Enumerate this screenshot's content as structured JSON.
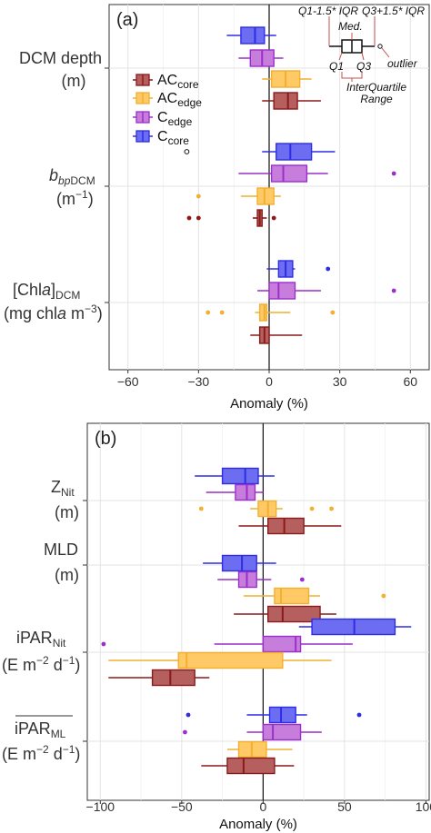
{
  "colors": {
    "AC_core": {
      "fill": "#b5605e",
      "line": "#8b1a1a"
    },
    "AC_edge": {
      "fill": "#ffc966",
      "line": "#f0b030"
    },
    "C_edge": {
      "fill": "#c77ddc",
      "line": "#9a2fc9"
    },
    "C_core": {
      "fill": "#6d6df2",
      "line": "#2d2de6"
    }
  },
  "legend": [
    {
      "key": "AC_core",
      "base": "AC",
      "sub": "core"
    },
    {
      "key": "AC_edge",
      "base": "AC",
      "sub": "edge"
    },
    {
      "key": "C_edge",
      "base": "C",
      "sub": "edge"
    },
    {
      "key": "C_core",
      "base": "C",
      "sub": "core"
    }
  ],
  "key_annotation": {
    "whisker_low": "Q1-1.5* IQR",
    "whisker_high": "Q3+1.5* IQR",
    "median": "Med.",
    "q1": "Q1",
    "q3": "Q3",
    "outlier": "outlier",
    "iqr": [
      "InterQuartile",
      "Range"
    ]
  },
  "chart_data": [
    {
      "type": "boxplot",
      "panel_label": "(a)",
      "xlabel": "Anomaly (%)",
      "xlim": [
        -68,
        68
      ],
      "xticks": [
        -60,
        -30,
        0,
        30,
        60
      ],
      "grid": true,
      "categories": [
        {
          "label_lines": [
            "DCM depth",
            "(m)"
          ],
          "boxes": [
            {
              "key": "C_core",
              "q1": -12,
              "median": -6,
              "q3": -2,
              "whisker_low": -18,
              "whisker_high": 3,
              "outliers": []
            },
            {
              "key": "C_edge",
              "q1": -8,
              "median": -3,
              "q3": 2,
              "whisker_low": -13,
              "whisker_high": 6,
              "outliers": []
            },
            {
              "key": "AC_edge",
              "q1": 1,
              "median": 7,
              "q3": 13,
              "whisker_low": -3,
              "whisker_high": 18,
              "outliers": []
            },
            {
              "key": "AC_core",
              "q1": 2,
              "median": 8,
              "q3": 12,
              "whisker_low": -3,
              "whisker_high": 22,
              "outliers": []
            }
          ]
        },
        {
          "label_lines": [
            "bbpDCM",
            "(m-1)"
          ],
          "boxes": [
            {
              "key": "C_core",
              "q1": 3,
              "median": 9,
              "q3": 18,
              "whisker_low": -3,
              "whisker_high": 28,
              "outliers": [
                -35
              ]
            },
            {
              "key": "C_edge",
              "q1": 1,
              "median": 6,
              "q3": 16,
              "whisker_low": -13,
              "whisker_high": 25,
              "outliers": [
                53
              ]
            },
            {
              "key": "AC_edge",
              "q1": -5,
              "median": -2,
              "q3": 2,
              "whisker_low": -12,
              "whisker_high": 5,
              "outliers": [
                -30
              ]
            },
            {
              "key": "AC_core",
              "q1": -5,
              "median": -4,
              "q3": -3,
              "whisker_low": -7,
              "whisker_high": -1,
              "outliers": [
                -34,
                -30,
                2
              ]
            }
          ]
        },
        {
          "label_lines": [
            "[Chla]DCM",
            "(mg chla m-3)"
          ],
          "boxes": [
            {
              "key": "C_core",
              "q1": 4,
              "median": 7,
              "q3": 10,
              "whisker_low": -1,
              "whisker_high": 11,
              "outliers": [
                25
              ]
            },
            {
              "key": "C_edge",
              "q1": 0,
              "median": 4,
              "q3": 11,
              "whisker_low": -5,
              "whisker_high": 22,
              "outliers": [
                53
              ]
            },
            {
              "key": "AC_edge",
              "q1": -4,
              "median": -2,
              "q3": -1,
              "whisker_low": -6,
              "whisker_high": 9,
              "outliers": [
                -26,
                -20,
                27
              ]
            },
            {
              "key": "AC_core",
              "q1": -4,
              "median": -2,
              "q3": 0,
              "whisker_low": -8,
              "whisker_high": 14,
              "outliers": []
            }
          ]
        }
      ]
    },
    {
      "type": "boxplot",
      "panel_label": "(b)",
      "xlabel": "Anomaly (%)",
      "xlim": [
        -108,
        102
      ],
      "xticks": [
        -100,
        -50,
        0,
        50,
        100
      ],
      "grid": true,
      "categories": [
        {
          "label_lines": [
            "ZNit",
            "(m)"
          ],
          "boxes": [
            {
              "key": "C_core",
              "q1": -25,
              "median": -11,
              "q3": -3,
              "whisker_low": -42,
              "whisker_high": 7,
              "outliers": []
            },
            {
              "key": "C_edge",
              "q1": -17,
              "median": -10,
              "q3": -5,
              "whisker_low": -35,
              "whisker_high": 0,
              "outliers": []
            },
            {
              "key": "AC_edge",
              "q1": -3,
              "median": 3,
              "q3": 8,
              "whisker_low": -8,
              "whisker_high": 12,
              "outliers": [
                -38,
                30,
                42
              ]
            },
            {
              "key": "AC_core",
              "q1": 3,
              "median": 13,
              "q3": 25,
              "whisker_low": -15,
              "whisker_high": 48,
              "outliers": []
            }
          ]
        },
        {
          "label_lines": [
            "MLD",
            "(m)"
          ],
          "boxes": [
            {
              "key": "C_core",
              "q1": -25,
              "median": -13,
              "q3": -4,
              "whisker_low": -37,
              "whisker_high": 8,
              "outliers": []
            },
            {
              "key": "C_edge",
              "q1": -15,
              "median": -10,
              "q3": -4,
              "whisker_low": -28,
              "whisker_high": 5,
              "outliers": [
                24
              ]
            },
            {
              "key": "AC_edge",
              "q1": 7,
              "median": 11,
              "q3": 28,
              "whisker_low": -12,
              "whisker_high": 35,
              "outliers": [
                74
              ]
            },
            {
              "key": "AC_core",
              "q1": 3,
              "median": 12,
              "q3": 35,
              "whisker_low": -18,
              "whisker_high": 45,
              "outliers": []
            }
          ]
        },
        {
          "label_lines": [
            "iPARNit",
            "(E m-2 d-1)"
          ],
          "boxes": [
            {
              "key": "C_core",
              "q1": 30,
              "median": 56,
              "q3": 81,
              "whisker_low": 22,
              "whisker_high": 91,
              "outliers": []
            },
            {
              "key": "C_edge",
              "q1": 0,
              "median": 20,
              "q3": 23,
              "whisker_low": -30,
              "whisker_high": 55,
              "outliers": [
                -98
              ]
            },
            {
              "key": "AC_edge",
              "q1": -52,
              "median": -47,
              "q3": 12,
              "whisker_low": -95,
              "whisker_high": 42,
              "outliers": []
            },
            {
              "key": "AC_core",
              "q1": -68,
              "median": -57,
              "q3": -42,
              "whisker_low": -95,
              "whisker_high": -33,
              "outliers": []
            }
          ]
        },
        {
          "label_lines": [
            "iPARML",
            "(E m-2 d-1)"
          ],
          "boxes": [
            {
              "key": "C_core",
              "q1": 4,
              "median": 11,
              "q3": 20,
              "whisker_low": -10,
              "whisker_high": 27,
              "outliers": [
                -46,
                59
              ]
            },
            {
              "key": "C_edge",
              "q1": 0,
              "median": 6,
              "q3": 23,
              "whisker_low": -10,
              "whisker_high": 36,
              "outliers": [
                -48
              ]
            },
            {
              "key": "AC_edge",
              "q1": -15,
              "median": -7,
              "q3": 2,
              "whisker_low": -22,
              "whisker_high": 18,
              "outliers": []
            },
            {
              "key": "AC_core",
              "q1": -22,
              "median": -12,
              "q3": 7,
              "whisker_low": -38,
              "whisker_high": 19,
              "outliers": []
            }
          ]
        }
      ]
    }
  ]
}
